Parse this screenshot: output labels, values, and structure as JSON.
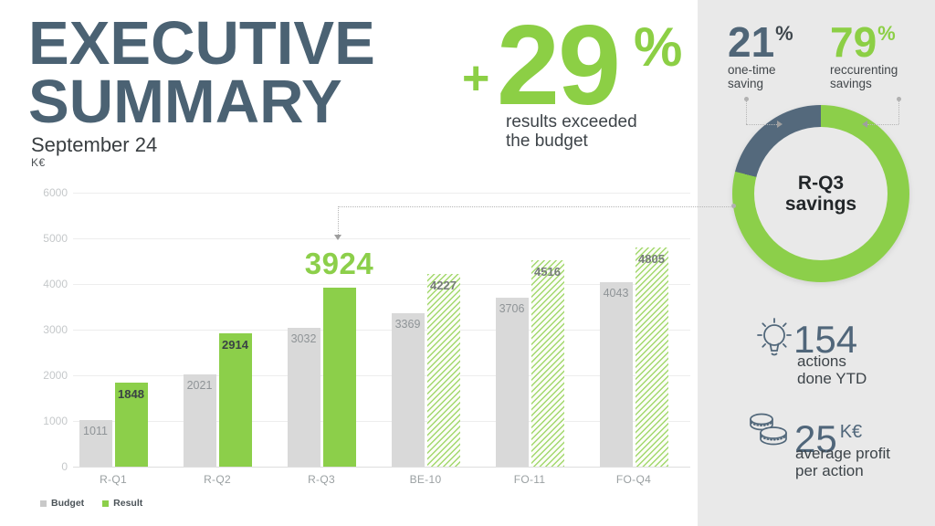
{
  "header": {
    "title_line1": "EXECUTIVE",
    "title_line2": "SUMMARY",
    "subtitle": "September 24",
    "unit": "K€"
  },
  "highlight": {
    "plus": "+",
    "value": "29",
    "percent": "%",
    "caption_line1": "results exceeded",
    "caption_line2": "the budget",
    "color": "#8ccf45"
  },
  "sidebar": {
    "annotations": [
      {
        "value": "21",
        "suffix": "%",
        "caption_line1": "one-time",
        "caption_line2": "saving",
        "value_color": "#4f6577",
        "suffix_color": "#3f474d"
      },
      {
        "value": "79",
        "suffix": "%",
        "caption_line1": "reccurenting",
        "caption_line2": "savings",
        "value_color": "#8ccf45",
        "suffix_color": "#8ccf45"
      }
    ],
    "stats": [
      {
        "icon": "lightbulb-icon",
        "value": "154",
        "caption_line1": "actions",
        "caption_line2": "done YTD"
      },
      {
        "icon": "coins-icon",
        "value": "25",
        "unit": "K€",
        "caption_line1": "average profit",
        "caption_line2": "per action"
      }
    ],
    "icon_color": "#51677a",
    "background": "#e9e9e9"
  },
  "chart_data": [
    {
      "type": "bar",
      "categories": [
        "R-Q1",
        "R-Q2",
        "R-Q3",
        "BE-10",
        "FO-11",
        "FO-Q4"
      ],
      "series": [
        {
          "name": "Budget",
          "color": "#d9d9d9",
          "values": [
            1011,
            2021,
            3032,
            3369,
            3706,
            4043
          ]
        },
        {
          "name": "Result",
          "color": "#8ccf4a",
          "values": [
            1848,
            2914,
            3924,
            4227,
            4516,
            4805
          ],
          "hatched": [
            false,
            false,
            false,
            true,
            true,
            true
          ]
        }
      ],
      "highlight": {
        "category": "R-Q3",
        "series": "Result",
        "value": 3924
      },
      "ylim": [
        0,
        6000
      ],
      "yticks": [
        0,
        1000,
        2000,
        3000,
        4000,
        5000,
        6000
      ],
      "grid": true,
      "legend_position": "bottom-left",
      "unit": "K€"
    },
    {
      "type": "pie",
      "donut": true,
      "center_line1": "R-Q3",
      "center_line2": "savings",
      "slices": [
        {
          "label": "reccurenting savings",
          "pct": 79,
          "color": "#8ccf4a"
        },
        {
          "label": "one-time saving",
          "pct": 21,
          "color": "#54697c"
        }
      ]
    }
  ]
}
